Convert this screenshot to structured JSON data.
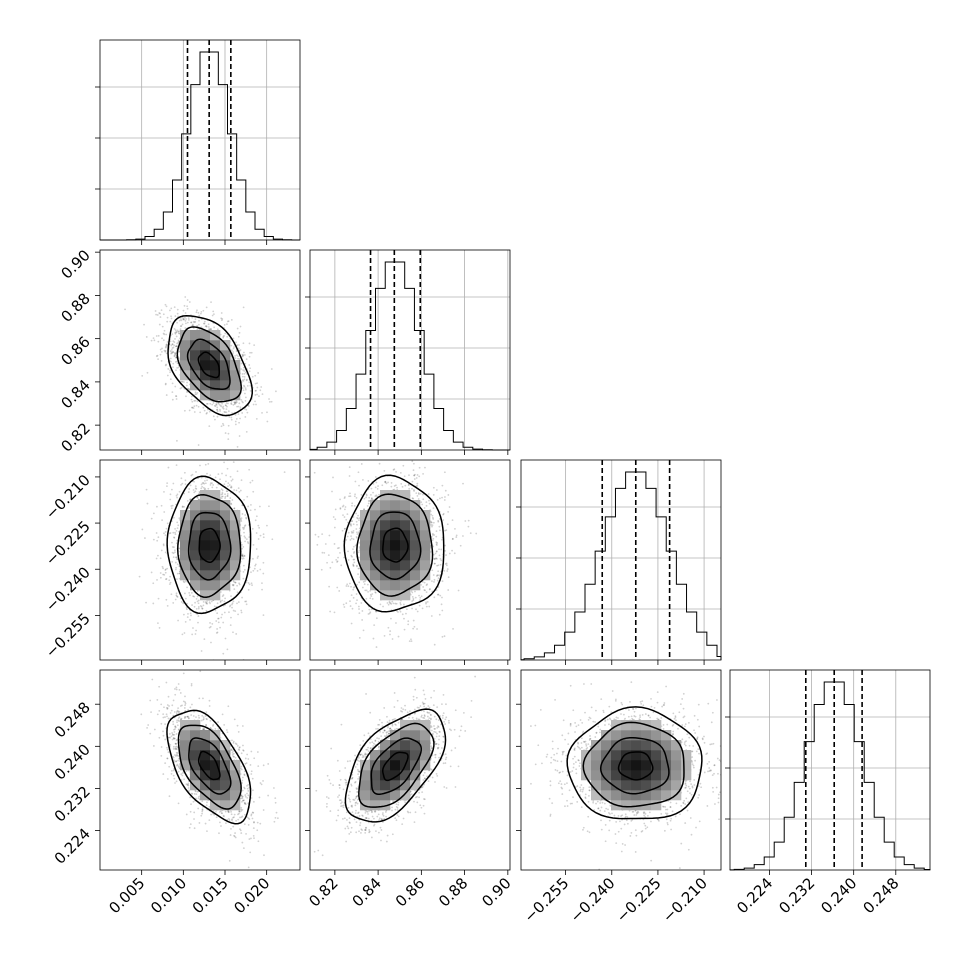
{
  "chart_data": {
    "type": "corner",
    "grid": true,
    "parameters": [
      {
        "index": 0,
        "range": [
          0.0,
          0.024
        ],
        "ticks": [
          0.005,
          0.01,
          0.015,
          0.02
        ],
        "tick_labels": [
          "0.005",
          "0.010",
          "0.015",
          "0.020"
        ],
        "quantiles": [
          0.0105,
          0.0131,
          0.0157
        ],
        "mean": 0.0131,
        "sd": 0.0025,
        "hist_bin_width": 0.0011
      },
      {
        "index": 1,
        "range": [
          0.8085,
          0.901
        ],
        "ticks": [
          0.82,
          0.84,
          0.86,
          0.88,
          0.9
        ],
        "tick_labels": [
          "0.82",
          "0.84",
          "0.86",
          "0.88",
          "0.90"
        ],
        "quantiles": [
          0.8365,
          0.8475,
          0.8595
        ],
        "mean": 0.8478,
        "sd": 0.0115,
        "hist_bin_width": 0.0045
      },
      {
        "index": 2,
        "range": [
          -0.2695,
          -0.2045
        ],
        "ticks": [
          -0.255,
          -0.24,
          -0.225,
          -0.21
        ],
        "tick_labels": [
          "−0.255",
          "−0.240",
          "−0.225",
          "−0.210"
        ],
        "quantiles": [
          -0.2431,
          -0.2322,
          -0.2212
        ],
        "mean": -0.2322,
        "sd": 0.0109,
        "hist_bin_width": 0.0033
      },
      {
        "index": 3,
        "range": [
          0.2165,
          0.2545
        ],
        "ticks": [
          0.224,
          0.232,
          0.24,
          0.248
        ],
        "tick_labels": [
          "0.224",
          "0.232",
          "0.240",
          "0.248"
        ],
        "quantiles": [
          0.2309,
          0.2363,
          0.2416
        ],
        "mean": 0.2363,
        "sd": 0.0053,
        "hist_bin_width": 0.0019
      }
    ],
    "correlations": [
      {
        "pair": [
          0,
          1
        ],
        "rho": -0.45
      },
      {
        "pair": [
          0,
          2
        ],
        "rho": 0.0
      },
      {
        "pair": [
          1,
          2
        ],
        "rho": 0.0
      },
      {
        "pair": [
          0,
          3
        ],
        "rho": -0.55
      },
      {
        "pair": [
          1,
          3
        ],
        "rho": 0.55
      },
      {
        "pair": [
          2,
          3
        ],
        "rho": 0.0
      }
    ],
    "contour_levels_sigma": [
      0.5,
      1.0,
      1.5,
      2.0
    ],
    "samples_shown": 1800
  }
}
